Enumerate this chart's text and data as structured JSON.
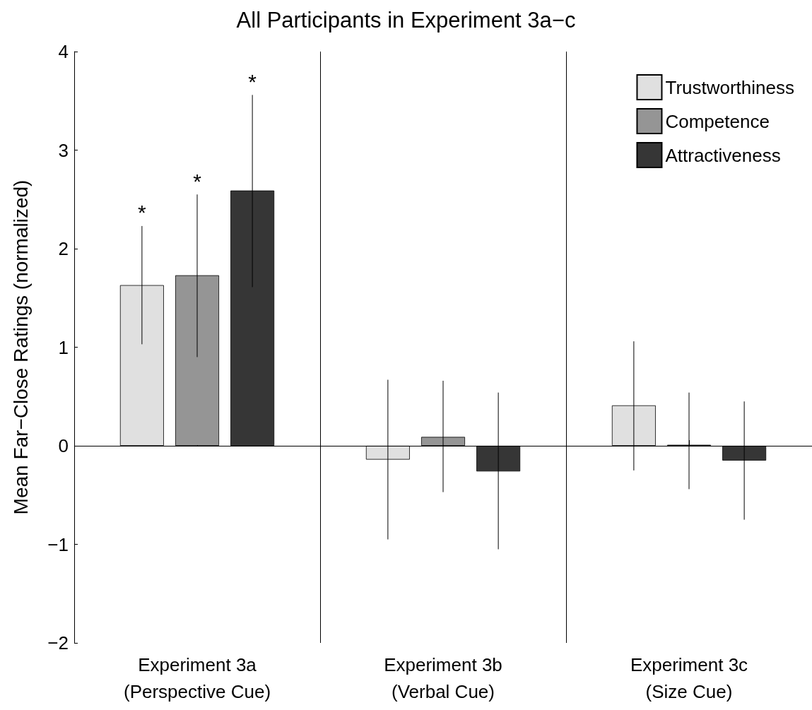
{
  "chart_data": {
    "type": "bar",
    "title": "All Participants in Experiment 3a−c",
    "ylabel": "Mean Far−Close Ratings (normalized)",
    "categories": [
      "Experiment 3a\n(Perspective Cue)",
      "Experiment 3b\n(Verbal Cue)",
      "Experiment 3c\n(Size Cue)"
    ],
    "series": [
      {
        "name": "Trustworthiness",
        "color": "#e0e0e0",
        "values": [
          1.63,
          -0.14,
          0.41
        ],
        "errors": [
          [
            1.03,
            2.23
          ],
          [
            -0.95,
            0.67
          ],
          [
            -0.25,
            1.06
          ]
        ]
      },
      {
        "name": "Competence",
        "color": "#959595",
        "values": [
          1.73,
          0.09,
          0.01
        ],
        "errors": [
          [
            0.9,
            2.55
          ],
          [
            -0.47,
            0.66
          ],
          [
            -0.44,
            0.54
          ]
        ]
      },
      {
        "name": "Attractiveness",
        "color": "#363636",
        "values": [
          2.59,
          -0.26,
          -0.15
        ],
        "errors": [
          [
            1.61,
            3.56
          ],
          [
            -1.05,
            0.54
          ],
          [
            -0.75,
            0.45
          ]
        ]
      }
    ],
    "ylim": [
      -2,
      4
    ],
    "yticks": [
      {
        "value": -2,
        "label": "−2"
      },
      {
        "value": -1,
        "label": "−1"
      },
      0,
      1,
      2,
      3,
      4
    ],
    "ref_lines": [
      {
        "axis": "y",
        "value": 0,
        "color": "#000000"
      }
    ],
    "annotations": [
      "*",
      "*",
      "*"
    ],
    "grid": "x",
    "legend": "top right"
  }
}
